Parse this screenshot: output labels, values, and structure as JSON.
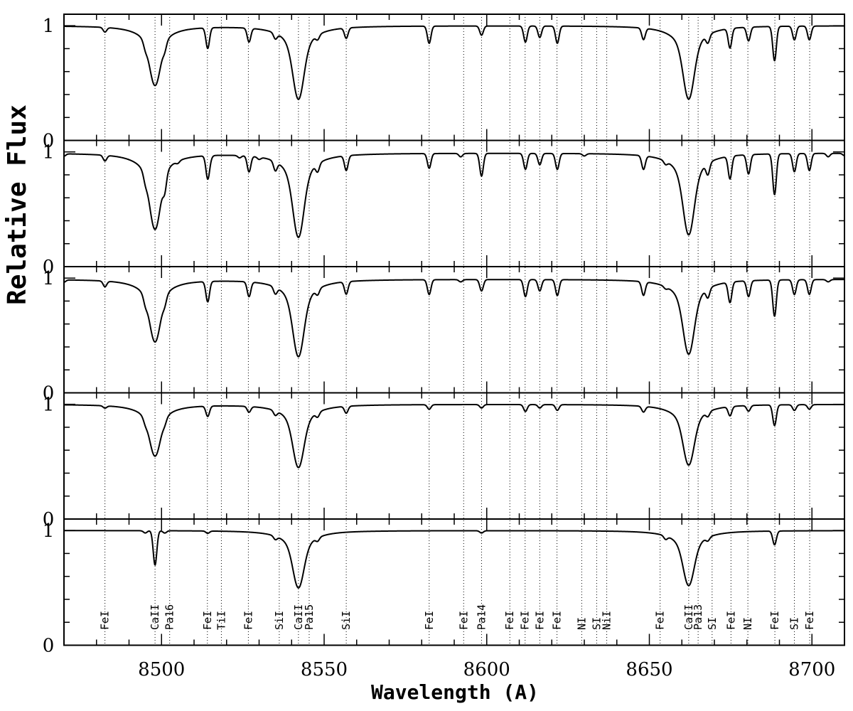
{
  "chart_data": {
    "type": "line",
    "title": "",
    "xlabel": "Wavelength (A)",
    "ylabel": "Relative Flux",
    "xlim": [
      8470,
      8710
    ],
    "ylim": [
      0,
      1.1
    ],
    "x_ticks": [
      8500,
      8550,
      8600,
      8650,
      8700
    ],
    "y_ticks": [
      0,
      1
    ],
    "grid": false,
    "legend": "none",
    "n_panels": 5,
    "line_labels": [
      {
        "label": "FeI",
        "wavelength": 8482.6
      },
      {
        "label": "CaII",
        "wavelength": 8498.0
      },
      {
        "label": "Pa16",
        "wavelength": 8502.5
      },
      {
        "label": "FeI",
        "wavelength": 8514.1
      },
      {
        "label": "TiI",
        "wavelength": 8518.4
      },
      {
        "label": "FeI",
        "wavelength": 8526.7
      },
      {
        "label": "SiI",
        "wavelength": 8536.2
      },
      {
        "label": "CaII",
        "wavelength": 8542.1
      },
      {
        "label": "Pa15",
        "wavelength": 8545.4
      },
      {
        "label": "SiI",
        "wavelength": 8556.8
      },
      {
        "label": "FeI",
        "wavelength": 8582.3
      },
      {
        "label": "FeI",
        "wavelength": 8592.9
      },
      {
        "label": "Pa14",
        "wavelength": 8598.4
      },
      {
        "label": "FeI",
        "wavelength": 8607.1
      },
      {
        "label": "FeI",
        "wavelength": 8611.8
      },
      {
        "label": "FeI",
        "wavelength": 8616.3
      },
      {
        "label": "FeI",
        "wavelength": 8621.6
      },
      {
        "label": "NI",
        "wavelength": 8629.2
      },
      {
        "label": "SI",
        "wavelength": 8633.8
      },
      {
        "label": "NiI",
        "wavelength": 8636.9
      },
      {
        "label": "FeI",
        "wavelength": 8653.3
      },
      {
        "label": "CaII",
        "wavelength": 8662.1
      },
      {
        "label": "Pa13",
        "wavelength": 8665.0
      },
      {
        "label": "SI",
        "wavelength": 8669.3
      },
      {
        "label": "FeI",
        "wavelength": 8675.1
      },
      {
        "label": "NI",
        "wavelength": 8680.3
      },
      {
        "label": "FeI",
        "wavelength": 8688.6
      },
      {
        "label": "SI",
        "wavelength": 8694.6
      },
      {
        "label": "FeI",
        "wavelength": 8699.3
      }
    ],
    "series": [
      {
        "x": [
          8470,
          8480,
          8482.6,
          8490,
          8495,
          8498,
          8501,
          8505,
          8514.2,
          8515,
          8524,
          8526.9,
          8530,
          8535,
          8542.1,
          8548,
          8556.8,
          8570,
          8582.3,
          8592,
          8598.4,
          8605,
          8611.9,
          8616.3,
          8621.7,
          8630,
          8640,
          8648.2,
          8655,
          8662.1,
          8668,
          8674.8,
          8680.5,
          8688.5,
          8694.6,
          8699.2,
          8705,
          8710
        ],
        "y": [
          0.99,
          1.0,
          0.96,
          1.0,
          0.96,
          0.48,
          0.95,
          0.99,
          0.82,
          0.99,
          0.99,
          0.88,
          0.99,
          0.95,
          0.36,
          0.96,
          0.91,
          1.0,
          0.85,
          0.99,
          0.92,
          1.0,
          0.86,
          0.9,
          0.85,
          0.99,
          1.0,
          0.9,
          0.99,
          0.36,
          0.93,
          0.83,
          0.88,
          0.7,
          0.88,
          0.88,
          0.99,
          1.0
        ]
      },
      {
        "x": [
          8470,
          8480,
          8482.6,
          8490,
          8495,
          8498,
          8501,
          8505,
          8514.2,
          8515,
          8524,
          8526.9,
          8530,
          8535,
          8542.1,
          8548,
          8556.8,
          8570,
          8582.3,
          8592,
          8598.4,
          8605,
          8611.9,
          8616.3,
          8621.7,
          8630,
          8640,
          8648.2,
          8655,
          8662.1,
          8668,
          8674.8,
          8680.5,
          8688.5,
          8694.6,
          8699.2,
          8705,
          8710
        ],
        "y": [
          0.98,
          0.99,
          0.95,
          0.99,
          0.95,
          0.33,
          0.88,
          0.98,
          0.8,
          0.98,
          0.98,
          0.86,
          0.98,
          0.92,
          0.26,
          0.93,
          0.87,
          0.99,
          0.87,
          0.97,
          0.8,
          0.99,
          0.86,
          0.9,
          0.86,
          0.98,
          0.99,
          0.88,
          0.97,
          0.28,
          0.9,
          0.8,
          0.83,
          0.64,
          0.84,
          0.85,
          0.97,
          0.98
        ]
      },
      {
        "x": [
          8470,
          8480,
          8482.6,
          8490,
          8495,
          8498,
          8501,
          8505,
          8514.2,
          8515,
          8524,
          8526.9,
          8530,
          8535,
          8542.1,
          8548,
          8556.8,
          8570,
          8582.3,
          8592,
          8598.4,
          8605,
          8611.9,
          8616.3,
          8621.7,
          8630,
          8640,
          8648.2,
          8655,
          8662.1,
          8668,
          8674.8,
          8680.5,
          8688.5,
          8694.6,
          8699.2,
          8705,
          8710
        ],
        "y": [
          0.98,
          0.99,
          0.95,
          0.99,
          0.95,
          0.45,
          0.95,
          0.99,
          0.82,
          0.99,
          0.99,
          0.87,
          0.99,
          0.94,
          0.32,
          0.95,
          0.89,
          0.99,
          0.87,
          0.98,
          0.9,
          0.99,
          0.85,
          0.9,
          0.86,
          0.99,
          0.99,
          0.88,
          0.98,
          0.34,
          0.92,
          0.82,
          0.86,
          0.68,
          0.87,
          0.87,
          0.98,
          0.99
        ]
      },
      {
        "x": [
          8470,
          8480,
          8482.6,
          8490,
          8495,
          8498,
          8501,
          8505,
          8514.2,
          8515,
          8524,
          8526.9,
          8530,
          8535,
          8542.1,
          8548,
          8556.8,
          8570,
          8582.3,
          8592,
          8598.4,
          8605,
          8611.9,
          8616.3,
          8621.7,
          8630,
          8640,
          8648.2,
          8655,
          8662.1,
          8668,
          8674.8,
          8680.5,
          8688.5,
          8694.6,
          8699.2,
          8705,
          8710
        ],
        "y": [
          0.99,
          0.99,
          0.98,
          0.99,
          0.97,
          0.55,
          0.97,
          0.99,
          0.91,
          0.99,
          0.99,
          0.95,
          0.99,
          0.96,
          0.45,
          0.96,
          0.94,
          0.99,
          0.96,
          0.99,
          0.97,
          0.99,
          0.94,
          0.97,
          0.95,
          0.99,
          0.99,
          0.95,
          0.99,
          0.47,
          0.96,
          0.92,
          0.95,
          0.82,
          0.95,
          0.96,
          0.99,
          0.99
        ]
      },
      {
        "x": [
          8470,
          8480,
          8490,
          8495,
          8498,
          8501,
          8505,
          8514.2,
          8520,
          8535,
          8542.1,
          8548,
          8556.8,
          8570,
          8598.4,
          8620,
          8650,
          8655,
          8662.1,
          8668,
          8680,
          8688.5,
          8695,
          8710
        ],
        "y": [
          1.0,
          1.0,
          1.0,
          0.98,
          0.7,
          0.98,
          1.0,
          0.98,
          1.0,
          0.97,
          0.5,
          0.97,
          0.99,
          1.0,
          0.98,
          1.0,
          1.0,
          0.97,
          0.52,
          0.97,
          1.0,
          0.88,
          1.0,
          1.0
        ]
      }
    ]
  }
}
